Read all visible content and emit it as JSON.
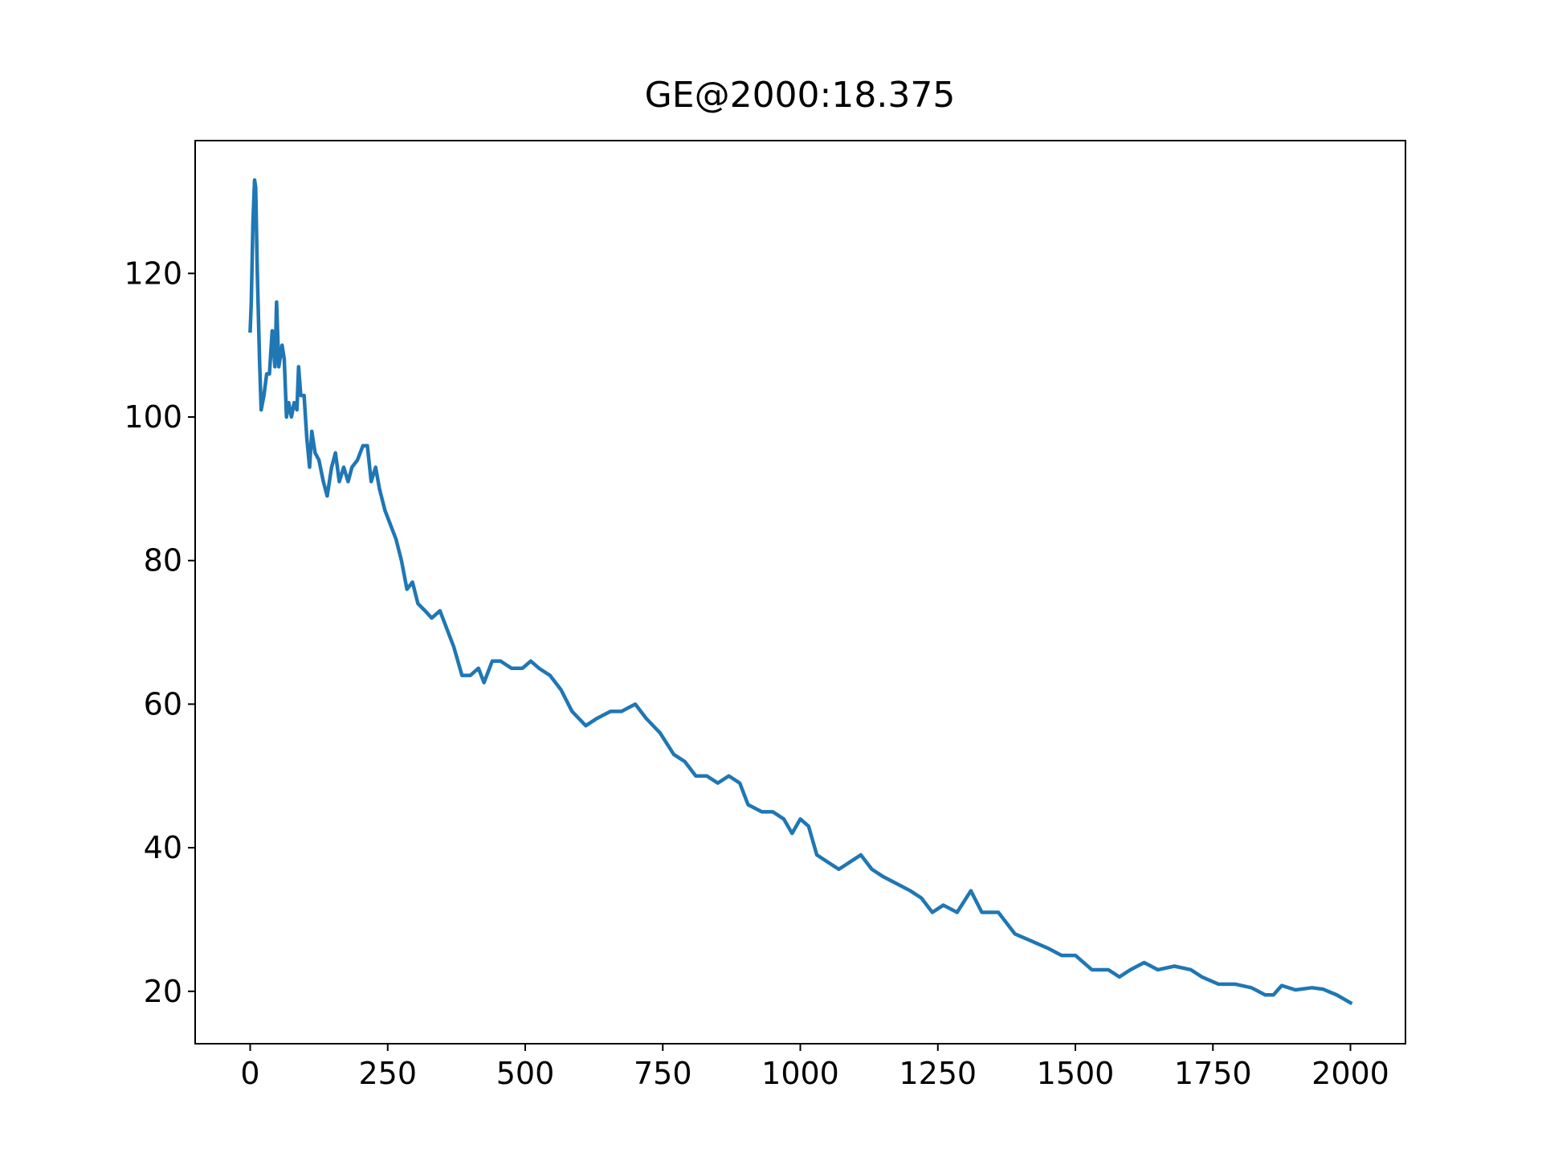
{
  "chart_data": {
    "type": "line",
    "title": "GE@2000:18.375",
    "color": "#1f77b4",
    "x": [
      0,
      2,
      5,
      8,
      10,
      13,
      17,
      20,
      25,
      30,
      35,
      40,
      45,
      48,
      52,
      58,
      62,
      66,
      70,
      75,
      80,
      85,
      88,
      92,
      98,
      103,
      108,
      112,
      118,
      125,
      133,
      140,
      148,
      155,
      162,
      170,
      178,
      185,
      195,
      205,
      213,
      220,
      228,
      235,
      245,
      255,
      265,
      275,
      285,
      295,
      305,
      318,
      330,
      345,
      355,
      370,
      385,
      400,
      415,
      425,
      440,
      455,
      475,
      495,
      510,
      525,
      545,
      565,
      585,
      610,
      630,
      655,
      675,
      700,
      720,
      745,
      770,
      790,
      810,
      830,
      850,
      870,
      890,
      905,
      930,
      950,
      970,
      985,
      1000,
      1015,
      1030,
      1050,
      1070,
      1090,
      1110,
      1130,
      1150,
      1175,
      1200,
      1220,
      1240,
      1260,
      1285,
      1310,
      1330,
      1360,
      1390,
      1420,
      1450,
      1475,
      1500,
      1530,
      1560,
      1580,
      1600,
      1625,
      1650,
      1680,
      1710,
      1730,
      1760,
      1790,
      1820,
      1845,
      1860,
      1875,
      1900,
      1930,
      1950,
      1975,
      2000
    ],
    "values": [
      112,
      116,
      127,
      133,
      132,
      120,
      108,
      101,
      103,
      106,
      106,
      112,
      107,
      116,
      107,
      110,
      108,
      100,
      102,
      100,
      102,
      101,
      107,
      103,
      103,
      97,
      93,
      98,
      95,
      94,
      91,
      89,
      93,
      95,
      91,
      93,
      91,
      93,
      94,
      96,
      96,
      91,
      93,
      90,
      87,
      85,
      83,
      80,
      76,
      77,
      74,
      73,
      72,
      73,
      71,
      68,
      64,
      64,
      65,
      63,
      66,
      66,
      65,
      65,
      66,
      65,
      64,
      62,
      59,
      57,
      58,
      59,
      59,
      60,
      58,
      56,
      53,
      52,
      50,
      50,
      49,
      50,
      49,
      46,
      45,
      45,
      44,
      42,
      44,
      43,
      39,
      38,
      37,
      38,
      39,
      37,
      36,
      35,
      34,
      33,
      31,
      32,
      31,
      34,
      31,
      31,
      28,
      27,
      26,
      25,
      25,
      23,
      23,
      22,
      23,
      24,
      23,
      23.5,
      23,
      22,
      21,
      21,
      20.5,
      19.5,
      19.5,
      20.8,
      20.2,
      20.5,
      20.3,
      19.5,
      18.4
    ],
    "xlim": [
      -100,
      2100
    ],
    "xticks": [
      0,
      250,
      500,
      750,
      1000,
      1250,
      1500,
      1750,
      2000
    ],
    "ylim": [
      12.7,
      138.5
    ],
    "yticks": [
      20,
      40,
      60,
      80,
      100,
      120
    ]
  }
}
